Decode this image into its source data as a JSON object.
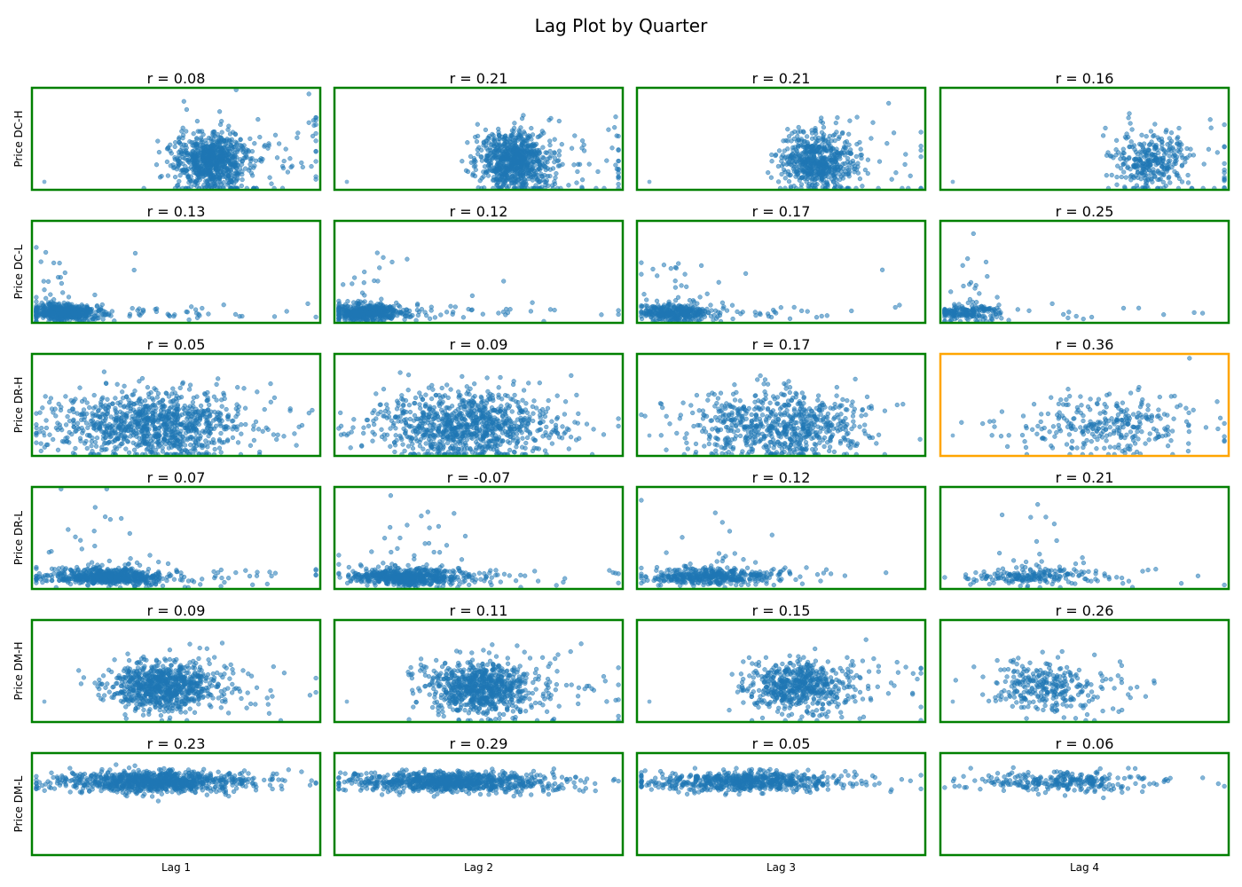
{
  "figure": {
    "title": "Lag Plot by Quarter"
  },
  "chart_data": {
    "type": "scatter",
    "grid": false,
    "axes_ticks": false,
    "rows": [
      "Price DC-H",
      "Price DC-L",
      "Price DR-H",
      "Price DR-L",
      "Price DM-H",
      "Price DM-L"
    ],
    "columns": [
      "Lag 1",
      "Lag 2",
      "Lag 3",
      "Lag 4"
    ],
    "correlations": [
      [
        "r = 0.08",
        "r = 0.21",
        "r = 0.21",
        "r = 0.16"
      ],
      [
        "r = 0.13",
        "r = 0.12",
        "r = 0.17",
        "r = 0.25"
      ],
      [
        "r = 0.05",
        "r = 0.09",
        "r = 0.17",
        "r = 0.36"
      ],
      [
        "r = 0.07",
        "r = -0.07",
        "r = 0.12",
        "r = 0.21"
      ],
      [
        "r = 0.09",
        "r = 0.11",
        "r = 0.15",
        "r = 0.26"
      ],
      [
        "r = 0.23",
        "r = 0.29",
        "r = 0.05",
        "r = 0.06"
      ]
    ],
    "colors": {
      "points": "#1f77b4",
      "frame_default": "#008000",
      "frame_highlight": "#ffa500"
    },
    "highlighted_panel": {
      "row": 2,
      "col": 3
    }
  }
}
